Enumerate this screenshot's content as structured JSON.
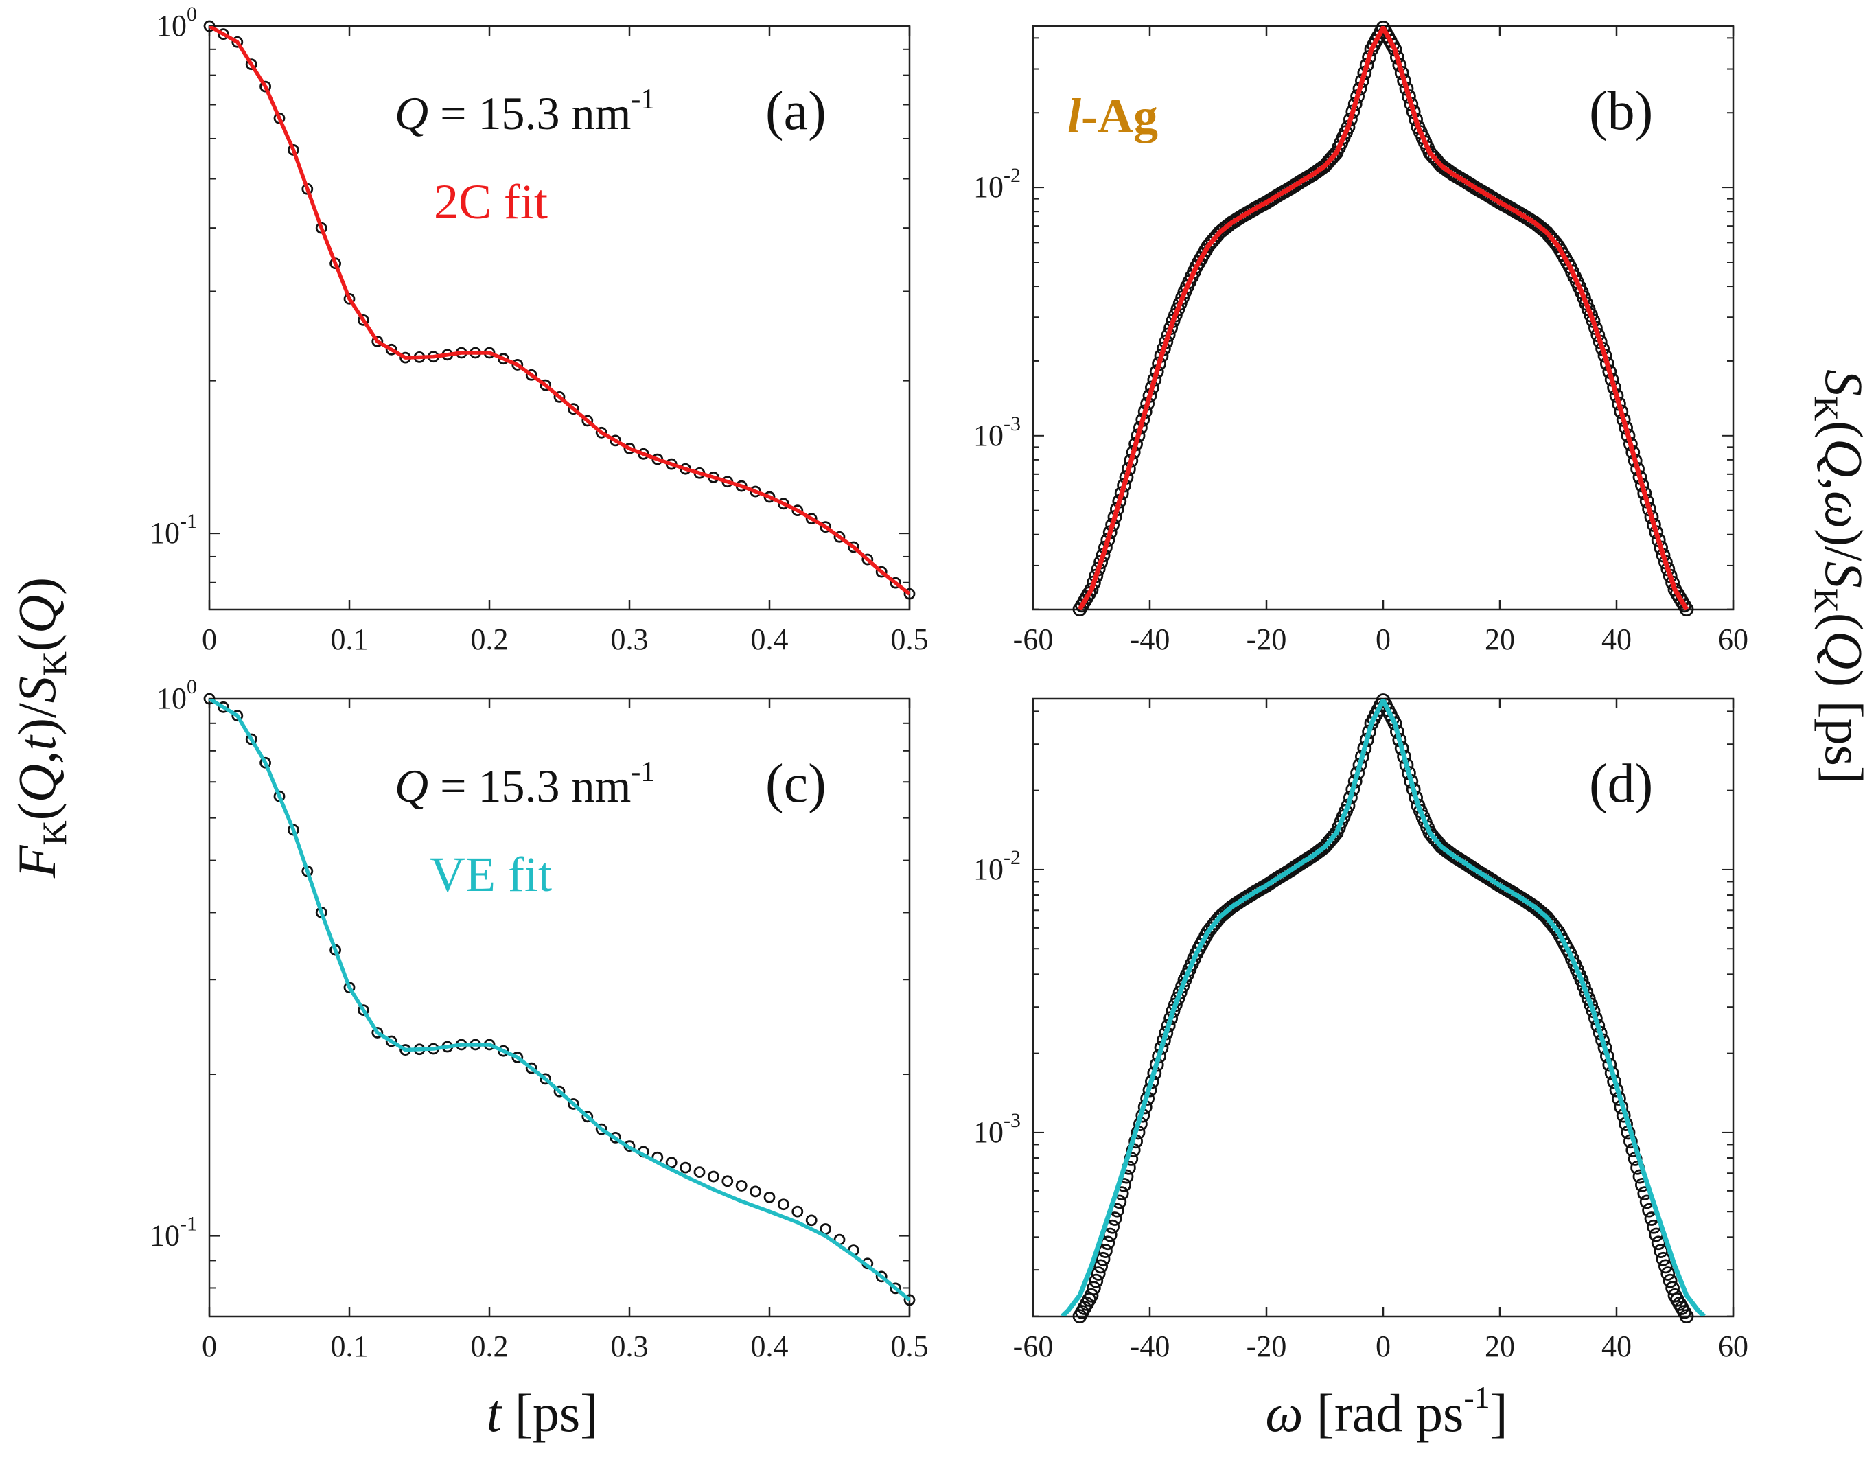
{
  "chart_data": [
    {
      "id": "a",
      "type": "scatter",
      "panel_label": "(a)",
      "annotation_q": "15.3 nm",
      "annotation_q_sup": "-1",
      "fit_label": "2C fit",
      "fit_color": "#ee1c1c",
      "xlim": [
        0,
        0.5
      ],
      "ylim_log10": [
        -1.15,
        0
      ],
      "x_ticks": [
        "0",
        "0.1",
        "0.2",
        "0.3",
        "0.4",
        "0.5"
      ],
      "y_ticks": [
        {
          "base": "10",
          "exp": "0",
          "value": 1.0
        },
        {
          "base": "10",
          "exp": "-1",
          "value": 0.1
        }
      ],
      "series": [
        {
          "name": "MD data",
          "marker": "circle",
          "x": [
            0,
            0.02,
            0.04,
            0.06,
            0.08,
            0.1,
            0.12,
            0.14,
            0.16,
            0.18,
            0.2,
            0.22,
            0.24,
            0.26,
            0.28,
            0.3,
            0.32,
            0.34,
            0.36,
            0.38,
            0.4,
            0.42,
            0.44,
            0.46,
            0.48,
            0.5
          ],
          "y": [
            1.0,
            0.93,
            0.76,
            0.57,
            0.4,
            0.29,
            0.239,
            0.222,
            0.223,
            0.227,
            0.227,
            0.215,
            0.196,
            0.176,
            0.158,
            0.147,
            0.14,
            0.134,
            0.129,
            0.124,
            0.118,
            0.111,
            0.103,
            0.094,
            0.084,
            0.076
          ]
        },
        {
          "name": "2C fit",
          "marker": "line",
          "x": [
            0,
            0.02,
            0.04,
            0.06,
            0.08,
            0.1,
            0.12,
            0.14,
            0.16,
            0.18,
            0.2,
            0.22,
            0.24,
            0.26,
            0.28,
            0.3,
            0.32,
            0.34,
            0.36,
            0.38,
            0.4,
            0.42,
            0.44,
            0.46,
            0.48,
            0.5
          ],
          "y": [
            1.0,
            0.93,
            0.76,
            0.57,
            0.4,
            0.29,
            0.239,
            0.222,
            0.223,
            0.227,
            0.227,
            0.215,
            0.196,
            0.176,
            0.158,
            0.147,
            0.14,
            0.134,
            0.129,
            0.124,
            0.118,
            0.111,
            0.103,
            0.094,
            0.084,
            0.076
          ]
        }
      ]
    },
    {
      "id": "b",
      "type": "scatter",
      "panel_label": "(b)",
      "material_label": "l-Ag",
      "material_color": "#c8820a",
      "fit_color": "#ee1c1c",
      "xlim": [
        -60,
        60
      ],
      "ylim_log10": [
        -3.7,
        -1.35
      ],
      "x_ticks": [
        "-60",
        "-40",
        "-20",
        "0",
        "20",
        "40",
        "60"
      ],
      "y_ticks": [
        {
          "base": "10",
          "exp": "-2",
          "value": 0.01
        },
        {
          "base": "10",
          "exp": "-3",
          "value": 0.001
        }
      ],
      "series": [
        {
          "name": "MD data",
          "marker": "circle",
          "x": [
            0,
            2,
            4,
            6,
            8,
            10,
            12,
            14,
            16,
            18,
            20,
            22,
            24,
            26,
            28,
            30,
            32,
            34,
            36,
            38,
            40,
            42,
            44,
            46,
            48,
            50,
            52
          ],
          "y": [
            0.044,
            0.036,
            0.025,
            0.0175,
            0.0138,
            0.0122,
            0.0113,
            0.0106,
            0.0099,
            0.0093,
            0.0087,
            0.0082,
            0.0077,
            0.0072,
            0.0066,
            0.0058,
            0.0048,
            0.0038,
            0.0029,
            0.0021,
            0.00145,
            0.001,
            0.00068,
            0.00047,
            0.00033,
            0.00024,
            0.0002
          ]
        },
        {
          "name": "2C fit",
          "marker": "line",
          "x": [
            0,
            2,
            4,
            6,
            8,
            10,
            12,
            14,
            16,
            18,
            20,
            22,
            24,
            26,
            28,
            30,
            32,
            34,
            36,
            38,
            40,
            42,
            44,
            46,
            48,
            50,
            52
          ],
          "y": [
            0.044,
            0.036,
            0.025,
            0.0175,
            0.0138,
            0.0122,
            0.0113,
            0.0106,
            0.0099,
            0.0093,
            0.0087,
            0.0082,
            0.0077,
            0.0072,
            0.0066,
            0.0058,
            0.0048,
            0.0038,
            0.0029,
            0.0021,
            0.00145,
            0.001,
            0.00068,
            0.00047,
            0.00033,
            0.00024,
            0.0002
          ]
        }
      ]
    },
    {
      "id": "c",
      "type": "scatter",
      "panel_label": "(c)",
      "annotation_q": "15.3 nm",
      "annotation_q_sup": "-1",
      "fit_label": "VE fit",
      "fit_color": "#22bcc4",
      "xlim": [
        0,
        0.5
      ],
      "ylim_log10": [
        -1.15,
        0
      ],
      "x_ticks": [
        "0",
        "0.1",
        "0.2",
        "0.3",
        "0.4",
        "0.5"
      ],
      "y_ticks": [
        {
          "base": "10",
          "exp": "0",
          "value": 1.0
        },
        {
          "base": "10",
          "exp": "-1",
          "value": 0.1
        }
      ],
      "series": [
        {
          "name": "MD data",
          "marker": "circle",
          "x": [
            0,
            0.02,
            0.04,
            0.06,
            0.08,
            0.1,
            0.12,
            0.14,
            0.16,
            0.18,
            0.2,
            0.22,
            0.24,
            0.26,
            0.28,
            0.3,
            0.32,
            0.34,
            0.36,
            0.38,
            0.4,
            0.42,
            0.44,
            0.46,
            0.48,
            0.5
          ],
          "y": [
            1.0,
            0.93,
            0.76,
            0.57,
            0.4,
            0.29,
            0.239,
            0.222,
            0.223,
            0.227,
            0.227,
            0.215,
            0.196,
            0.176,
            0.158,
            0.147,
            0.14,
            0.134,
            0.129,
            0.124,
            0.118,
            0.111,
            0.103,
            0.094,
            0.084,
            0.076
          ]
        },
        {
          "name": "VE fit",
          "marker": "line",
          "x": [
            0,
            0.02,
            0.04,
            0.06,
            0.08,
            0.1,
            0.12,
            0.14,
            0.16,
            0.18,
            0.2,
            0.22,
            0.24,
            0.26,
            0.28,
            0.3,
            0.32,
            0.34,
            0.36,
            0.38,
            0.4,
            0.42,
            0.44,
            0.46,
            0.48,
            0.5
          ],
          "y": [
            1.0,
            0.93,
            0.76,
            0.57,
            0.4,
            0.29,
            0.239,
            0.222,
            0.223,
            0.227,
            0.227,
            0.215,
            0.196,
            0.176,
            0.158,
            0.146,
            0.137,
            0.129,
            0.122,
            0.116,
            0.111,
            0.106,
            0.1,
            0.092,
            0.084,
            0.076
          ]
        }
      ]
    },
    {
      "id": "d",
      "type": "scatter",
      "panel_label": "(d)",
      "fit_color": "#22bcc4",
      "xlim": [
        -60,
        60
      ],
      "ylim_log10": [
        -3.7,
        -1.35
      ],
      "x_ticks": [
        "-60",
        "-40",
        "-20",
        "0",
        "20",
        "40",
        "60"
      ],
      "y_ticks": [
        {
          "base": "10",
          "exp": "-2",
          "value": 0.01
        },
        {
          "base": "10",
          "exp": "-3",
          "value": 0.001
        }
      ],
      "series": [
        {
          "name": "MD data",
          "marker": "circle",
          "x": [
            0,
            2,
            4,
            6,
            8,
            10,
            12,
            14,
            16,
            18,
            20,
            22,
            24,
            26,
            28,
            30,
            32,
            34,
            36,
            38,
            40,
            42,
            44,
            46,
            48,
            50,
            52
          ],
          "y": [
            0.044,
            0.036,
            0.025,
            0.0175,
            0.0138,
            0.0122,
            0.0113,
            0.0106,
            0.0099,
            0.0093,
            0.0087,
            0.0082,
            0.0077,
            0.0072,
            0.0066,
            0.0058,
            0.0048,
            0.0038,
            0.0029,
            0.0021,
            0.00145,
            0.001,
            0.00068,
            0.00047,
            0.00033,
            0.00024,
            0.0002
          ]
        },
        {
          "name": "VE fit",
          "marker": "line",
          "x": [
            0,
            2,
            4,
            6,
            8,
            10,
            12,
            14,
            16,
            18,
            20,
            22,
            24,
            26,
            28,
            30,
            32,
            34,
            36,
            38,
            40,
            42,
            44,
            46,
            48,
            50,
            52,
            54,
            55
          ],
          "y": [
            0.044,
            0.036,
            0.025,
            0.0175,
            0.0138,
            0.0122,
            0.0113,
            0.0106,
            0.0099,
            0.0093,
            0.0087,
            0.0082,
            0.0077,
            0.0072,
            0.0066,
            0.0058,
            0.0048,
            0.0038,
            0.0029,
            0.0021,
            0.0015,
            0.00108,
            0.00078,
            0.00057,
            0.00042,
            0.00031,
            0.00024,
            0.00021,
            0.0002
          ]
        }
      ]
    }
  ],
  "axes": {
    "left_ylabel": "F_K(Q,t)/S_K(Q)",
    "right_ylabel": "S_K(Q,ω)/S_K(Q) [ps]",
    "bottom_left_xlabel": "t [ps]",
    "bottom_right_xlabel": "ω [rad ps^-1]"
  }
}
